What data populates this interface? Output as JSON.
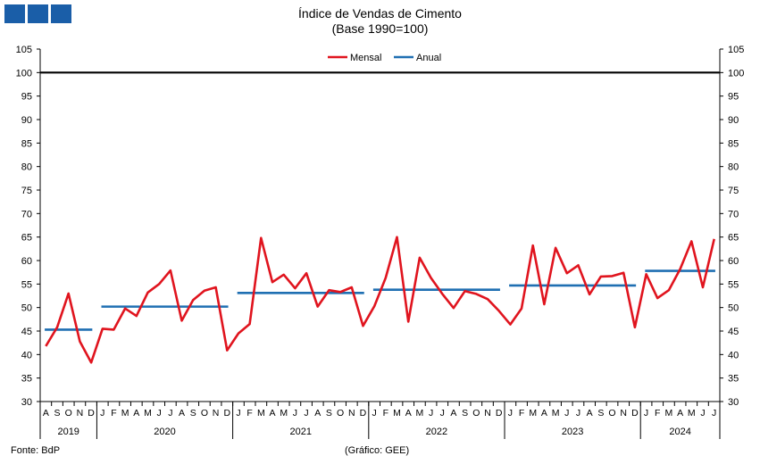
{
  "header": {
    "title": "Índice de Vendas de Cimento",
    "subtitle": "(Base 1990=100)"
  },
  "footer": {
    "source": "Fonte: BdP",
    "credit": "(Gráfico: GEE)"
  },
  "chart_data": {
    "type": "line",
    "title": "Índice de Vendas de Cimento",
    "subtitle": "(Base 1990=100)",
    "ylim": [
      30,
      105
    ],
    "yticks": [
      30,
      35,
      40,
      45,
      50,
      55,
      60,
      65,
      70,
      75,
      80,
      85,
      90,
      95,
      100,
      105
    ],
    "reference_line": 100,
    "legend": {
      "position": "top-center",
      "entries": [
        "Mensal",
        "Anual"
      ]
    },
    "colors": {
      "monthly": "#e0141e",
      "annual": "#1f6fb2",
      "reference": "#000000"
    },
    "month_labels": [
      "A",
      "S",
      "O",
      "N",
      "D",
      "J",
      "F",
      "M",
      "A",
      "M",
      "J",
      "J",
      "A",
      "S",
      "O",
      "N",
      "D",
      "J",
      "F",
      "M",
      "A",
      "M",
      "J",
      "J",
      "A",
      "S",
      "O",
      "N",
      "D",
      "J",
      "F",
      "M",
      "A",
      "M",
      "J",
      "J",
      "A",
      "S",
      "O",
      "N",
      "D",
      "J",
      "F",
      "M",
      "A",
      "M",
      "J",
      "J",
      "A",
      "S",
      "O",
      "N",
      "D",
      "J",
      "F",
      "M",
      "A",
      "M",
      "J",
      "J"
    ],
    "years": [
      {
        "label": "2019",
        "months": 5
      },
      {
        "label": "2020",
        "months": 12
      },
      {
        "label": "2021",
        "months": 12
      },
      {
        "label": "2022",
        "months": 12
      },
      {
        "label": "2023",
        "months": 12
      },
      {
        "label": "2024",
        "months": 7
      }
    ],
    "series": [
      {
        "name": "Mensal",
        "values": [
          41.8,
          45.8,
          53.0,
          42.8,
          38.3,
          45.5,
          45.3,
          49.8,
          48.2,
          53.2,
          55.0,
          57.9,
          47.2,
          51.6,
          53.6,
          54.3,
          40.9,
          44.5,
          46.5,
          64.8,
          55.4,
          57.0,
          54.1,
          57.3,
          50.2,
          53.7,
          53.3,
          54.3,
          46.1,
          50.3,
          56.3,
          65.0,
          47.0,
          60.6,
          56.3,
          52.9,
          49.9,
          53.5,
          52.9,
          51.8,
          49.3,
          46.4,
          49.8,
          63.2,
          50.7,
          62.7,
          57.3,
          59.0,
          52.8,
          56.6,
          56.7,
          57.4,
          45.8,
          57.1,
          52.0,
          53.7,
          58.2,
          64.1,
          54.3,
          64.6
        ]
      },
      {
        "name": "Anual",
        "values": [
          45.3,
          50.2,
          53.1,
          53.8,
          54.7,
          57.8
        ]
      }
    ]
  }
}
